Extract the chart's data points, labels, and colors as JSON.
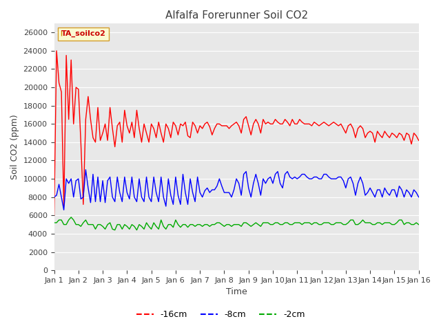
{
  "title": "Alfalfa Forerunner Soil CO2",
  "xlabel": "Time",
  "ylabel": "Soil CO2 (ppm)",
  "ylim": [
    0,
    27000
  ],
  "yticks": [
    0,
    2000,
    4000,
    6000,
    8000,
    10000,
    12000,
    14000,
    16000,
    18000,
    20000,
    22000,
    24000,
    26000
  ],
  "background_color": "#e8e8e8",
  "figure_bg": "#ffffff",
  "legend_label": "TA_soilco2",
  "series": [
    {
      "label": "-16cm",
      "color": "#ff0000",
      "x": [
        1,
        1.1,
        1.2,
        1.3,
        1.4,
        1.5,
        1.6,
        1.7,
        1.8,
        1.9,
        2.0,
        2.1,
        2.2,
        2.3,
        2.4,
        2.5,
        2.6,
        2.7,
        2.8,
        2.9,
        3.0,
        3.1,
        3.2,
        3.3,
        3.4,
        3.5,
        3.6,
        3.7,
        3.8,
        3.9,
        4.0,
        4.1,
        4.2,
        4.3,
        4.4,
        4.5,
        4.6,
        4.7,
        4.8,
        4.9,
        5.0,
        5.1,
        5.2,
        5.3,
        5.4,
        5.5,
        5.6,
        5.7,
        5.8,
        5.9,
        6.0,
        6.1,
        6.2,
        6.3,
        6.4,
        6.5,
        6.6,
        6.7,
        6.8,
        6.9,
        7.0,
        7.1,
        7.2,
        7.3,
        7.4,
        7.5,
        7.6,
        7.7,
        7.8,
        7.9,
        8.0,
        8.1,
        8.2,
        8.3,
        8.4,
        8.5,
        8.6,
        8.7,
        8.8,
        8.9,
        9.0,
        9.1,
        9.2,
        9.3,
        9.4,
        9.5,
        9.6,
        9.7,
        9.8,
        9.9,
        10.0,
        10.1,
        10.2,
        10.3,
        10.4,
        10.5,
        10.6,
        10.7,
        10.8,
        10.9,
        11.0,
        11.1,
        11.2,
        11.3,
        11.4,
        11.5,
        11.6,
        11.7,
        11.8,
        11.9,
        12.0,
        12.1,
        12.2,
        12.3,
        12.4,
        12.5,
        12.6,
        12.7,
        12.8,
        12.9,
        13.0,
        13.1,
        13.2,
        13.3,
        13.4,
        13.5,
        13.6,
        13.7,
        13.8,
        13.9,
        14.0,
        14.1,
        14.2,
        14.3,
        14.4,
        14.5,
        14.6,
        14.7,
        14.8,
        14.9,
        15.0,
        15.1,
        15.2,
        15.3,
        15.4,
        15.5,
        15.6,
        15.7,
        15.8,
        15.9,
        16.0
      ],
      "y": [
        6000,
        24000,
        20500,
        19500,
        7000,
        23500,
        16500,
        23000,
        16000,
        20000,
        19800,
        14000,
        7200,
        16500,
        19000,
        16500,
        14500,
        14000,
        17800,
        14200,
        15000,
        16000,
        14200,
        17800,
        15500,
        13500,
        15800,
        16200,
        14000,
        17500,
        15800,
        15000,
        16200,
        14500,
        17500,
        15500,
        14000,
        16000,
        15000,
        14000,
        16000,
        15500,
        14500,
        16200,
        15000,
        14000,
        16000,
        15500,
        14500,
        16200,
        15800,
        14800,
        16000,
        15800,
        16200,
        14700,
        14500,
        16200,
        15800,
        15000,
        15800,
        15500,
        16000,
        16200,
        15700,
        14800,
        15500,
        16000,
        16000,
        15800,
        15800,
        15800,
        15500,
        15800,
        16000,
        16200,
        15800,
        15000,
        16500,
        16800,
        15800,
        14800,
        16000,
        16500,
        16000,
        15000,
        16500,
        16000,
        16200,
        16000,
        16000,
        16500,
        16200,
        16000,
        16000,
        16500,
        16200,
        15800,
        16500,
        16000,
        16000,
        16500,
        16200,
        16000,
        16000,
        16000,
        15800,
        16200,
        16000,
        15800,
        16000,
        16200,
        16000,
        15800,
        16000,
        16200,
        16000,
        15800,
        16000,
        15500,
        15000,
        15800,
        16000,
        15500,
        14500,
        15500,
        15800,
        15500,
        14500,
        15000,
        15200,
        15000,
        14000,
        15200,
        14800,
        14500,
        15200,
        14800,
        14500,
        15000,
        14800,
        14500,
        15000,
        14800,
        14200,
        15000,
        14800,
        13800,
        15000,
        14700,
        14200
      ]
    },
    {
      "label": "-8cm",
      "color": "#0000ff",
      "x": [
        1,
        1.1,
        1.2,
        1.3,
        1.4,
        1.5,
        1.6,
        1.7,
        1.8,
        1.9,
        2.0,
        2.1,
        2.2,
        2.3,
        2.4,
        2.5,
        2.6,
        2.7,
        2.8,
        2.9,
        3.0,
        3.1,
        3.2,
        3.3,
        3.4,
        3.5,
        3.6,
        3.7,
        3.8,
        3.9,
        4.0,
        4.1,
        4.2,
        4.3,
        4.4,
        4.5,
        4.6,
        4.7,
        4.8,
        4.9,
        5.0,
        5.1,
        5.2,
        5.3,
        5.4,
        5.5,
        5.6,
        5.7,
        5.8,
        5.9,
        6.0,
        6.1,
        6.2,
        6.3,
        6.4,
        6.5,
        6.6,
        6.7,
        6.8,
        6.9,
        7.0,
        7.1,
        7.2,
        7.3,
        7.4,
        7.5,
        7.6,
        7.7,
        7.8,
        7.9,
        8.0,
        8.1,
        8.2,
        8.3,
        8.4,
        8.5,
        8.6,
        8.7,
        8.8,
        8.9,
        9.0,
        9.1,
        9.2,
        9.3,
        9.4,
        9.5,
        9.6,
        9.7,
        9.8,
        9.9,
        10.0,
        10.1,
        10.2,
        10.3,
        10.4,
        10.5,
        10.6,
        10.7,
        10.8,
        10.9,
        11.0,
        11.1,
        11.2,
        11.3,
        11.4,
        11.5,
        11.6,
        11.7,
        11.8,
        11.9,
        12.0,
        12.1,
        12.2,
        12.3,
        12.4,
        12.5,
        12.6,
        12.7,
        12.8,
        12.9,
        13.0,
        13.1,
        13.2,
        13.3,
        13.4,
        13.5,
        13.6,
        13.7,
        13.8,
        13.9,
        14.0,
        14.1,
        14.2,
        14.3,
        14.4,
        14.5,
        14.6,
        14.7,
        14.8,
        14.9,
        15.0,
        15.1,
        15.2,
        15.3,
        15.4,
        15.5,
        15.6,
        15.7,
        15.8,
        15.9,
        16.0
      ],
      "y": [
        8000,
        8200,
        9400,
        8000,
        6600,
        10000,
        9500,
        10000,
        8000,
        9800,
        10000,
        7800,
        8000,
        11000,
        9000,
        7400,
        10500,
        7500,
        10200,
        7500,
        9800,
        7400,
        9800,
        10200,
        8000,
        7500,
        10200,
        8500,
        7500,
        10200,
        8500,
        7800,
        10200,
        8000,
        7500,
        10000,
        8000,
        7500,
        10200,
        8000,
        7500,
        10200,
        8500,
        7500,
        10200,
        8000,
        7000,
        10000,
        8200,
        7200,
        10200,
        8200,
        7200,
        10500,
        8500,
        7200,
        10000,
        8500,
        7500,
        10200,
        8500,
        8000,
        8700,
        9000,
        8500,
        8800,
        8800,
        9200,
        10000,
        9200,
        8500,
        8500,
        8500,
        8000,
        8800,
        10000,
        9500,
        8200,
        10500,
        10800,
        9000,
        8000,
        9500,
        10500,
        9500,
        8200,
        10000,
        9500,
        10000,
        10200,
        9500,
        10500,
        10800,
        9500,
        9000,
        10500,
        10800,
        10200,
        10000,
        10200,
        10000,
        10200,
        10500,
        10500,
        10200,
        10000,
        10000,
        10200,
        10200,
        10000,
        10000,
        10500,
        10500,
        10200,
        10000,
        10000,
        10000,
        10200,
        10200,
        9800,
        9000,
        10000,
        10200,
        9500,
        8200,
        9500,
        10200,
        9500,
        8200,
        8500,
        9000,
        8500,
        8000,
        8800,
        8800,
        8000,
        9000,
        8500,
        8200,
        8800,
        8800,
        8000,
        9200,
        8800,
        8000,
        8800,
        8500,
        8000,
        8800,
        8500,
        8000
      ]
    },
    {
      "label": "-2cm",
      "color": "#00aa00",
      "x": [
        1,
        1.1,
        1.2,
        1.3,
        1.4,
        1.5,
        1.6,
        1.7,
        1.8,
        1.9,
        2.0,
        2.1,
        2.2,
        2.3,
        2.4,
        2.5,
        2.6,
        2.7,
        2.8,
        2.9,
        3.0,
        3.1,
        3.2,
        3.3,
        3.4,
        3.5,
        3.6,
        3.7,
        3.8,
        3.9,
        4.0,
        4.1,
        4.2,
        4.3,
        4.4,
        4.5,
        4.6,
        4.7,
        4.8,
        4.9,
        5.0,
        5.1,
        5.2,
        5.3,
        5.4,
        5.5,
        5.6,
        5.7,
        5.8,
        5.9,
        6.0,
        6.1,
        6.2,
        6.3,
        6.4,
        6.5,
        6.6,
        6.7,
        6.8,
        6.9,
        7.0,
        7.1,
        7.2,
        7.3,
        7.4,
        7.5,
        7.6,
        7.7,
        7.8,
        7.9,
        8.0,
        8.1,
        8.2,
        8.3,
        8.4,
        8.5,
        8.6,
        8.7,
        8.8,
        8.9,
        9.0,
        9.1,
        9.2,
        9.3,
        9.4,
        9.5,
        9.6,
        9.7,
        9.8,
        9.9,
        10.0,
        10.1,
        10.2,
        10.3,
        10.4,
        10.5,
        10.6,
        10.7,
        10.8,
        10.9,
        11.0,
        11.1,
        11.2,
        11.3,
        11.4,
        11.5,
        11.6,
        11.7,
        11.8,
        11.9,
        12.0,
        12.1,
        12.2,
        12.3,
        12.4,
        12.5,
        12.6,
        12.7,
        12.8,
        12.9,
        13.0,
        13.1,
        13.2,
        13.3,
        13.4,
        13.5,
        13.6,
        13.7,
        13.8,
        13.9,
        14.0,
        14.1,
        14.2,
        14.3,
        14.4,
        14.5,
        14.6,
        14.7,
        14.8,
        14.9,
        15.0,
        15.1,
        15.2,
        15.3,
        15.4,
        15.5,
        15.6,
        15.7,
        15.8,
        15.9,
        16.0
      ],
      "y": [
        5200,
        5200,
        5500,
        5500,
        5000,
        5000,
        5500,
        5800,
        5500,
        5000,
        5000,
        4800,
        5200,
        5500,
        5000,
        5000,
        5000,
        4500,
        5000,
        5000,
        4800,
        4500,
        5000,
        5200,
        4500,
        4400,
        5000,
        5000,
        4500,
        5000,
        4800,
        4500,
        5000,
        4800,
        4400,
        5000,
        4800,
        4500,
        5200,
        4800,
        4500,
        5200,
        4800,
        4500,
        5500,
        4800,
        4500,
        5000,
        5000,
        4700,
        5500,
        5000,
        4700,
        5000,
        5000,
        4700,
        5000,
        5000,
        4800,
        5000,
        5000,
        4800,
        5000,
        5000,
        4800,
        5000,
        5000,
        5200,
        5200,
        5000,
        4800,
        5000,
        5000,
        4800,
        5000,
        5000,
        5000,
        4800,
        5200,
        5200,
        5000,
        4800,
        5000,
        5200,
        5000,
        4800,
        5200,
        5200,
        5200,
        5000,
        5000,
        5200,
        5200,
        5000,
        5000,
        5200,
        5200,
        5000,
        5000,
        5200,
        5200,
        5200,
        5000,
        5200,
        5200,
        5200,
        5000,
        5200,
        5200,
        5000,
        5000,
        5200,
        5200,
        5200,
        5000,
        5000,
        5200,
        5200,
        5200,
        5000,
        5000,
        5200,
        5500,
        5500,
        5000,
        5000,
        5200,
        5500,
        5200,
        5200,
        5200,
        5000,
        5000,
        5200,
        5200,
        5000,
        5200,
        5200,
        5200,
        5000,
        5000,
        5200,
        5500,
        5500,
        5000,
        5200,
        5200,
        5000,
        5000,
        5200,
        5000
      ]
    }
  ]
}
